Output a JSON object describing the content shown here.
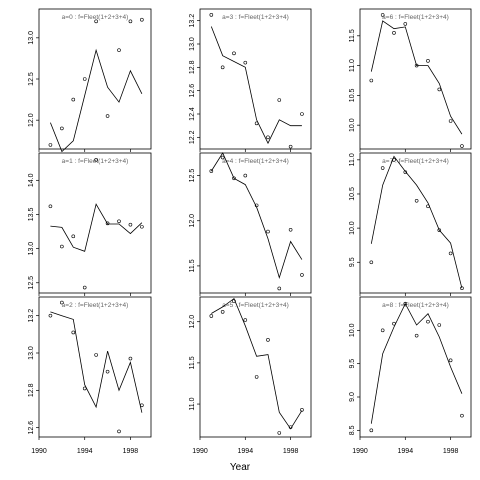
{
  "chart_data": {
    "type": "line",
    "xlabel": "Year",
    "legend": "none",
    "grid": false,
    "x_ticks": [
      1990,
      1994,
      1998
    ],
    "panels": [
      {
        "label": "a=0  :  f=Fleet(1+2+3+4)",
        "xlim": [
          1990,
          1999.8
        ],
        "ylim": [
          11.65,
          13.35
        ],
        "yticks": [
          12.0,
          12.5,
          13.0
        ],
        "observed": {
          "x": [
            1991,
            1992,
            1993,
            1994,
            1995,
            1996,
            1997,
            1998,
            1999
          ],
          "y": [
            11.7,
            11.9,
            12.25,
            12.5,
            13.2,
            12.05,
            12.85,
            13.2,
            13.22
          ]
        },
        "fitted": {
          "x": [
            1991,
            1992,
            1993,
            1994,
            1995,
            1996,
            1997,
            1998,
            1999
          ],
          "y": [
            11.97,
            11.62,
            11.75,
            12.3,
            12.85,
            12.4,
            12.22,
            12.6,
            12.32
          ]
        }
      },
      {
        "label": "a=1  :  f=Fleet(1+2+3+4)",
        "xlim": [
          1990,
          1999.8
        ],
        "ylim": [
          12.35,
          14.4
        ],
        "yticks": [
          12.5,
          13.0,
          13.5,
          14.0
        ],
        "observed": {
          "x": [
            1991,
            1992,
            1993,
            1994,
            1995,
            1996,
            1997,
            1998,
            1999
          ],
          "y": [
            13.62,
            13.03,
            13.18,
            12.43,
            14.3,
            13.37,
            13.4,
            13.35,
            13.32
          ]
        },
        "fitted": {
          "x": [
            1991,
            1992,
            1993,
            1994,
            1995,
            1996,
            1997,
            1998,
            1999
          ],
          "y": [
            13.33,
            13.31,
            13.02,
            12.96,
            13.65,
            13.36,
            13.36,
            13.22,
            13.38
          ]
        }
      },
      {
        "label": "a=2  :  f=Fleet(1+2+3+4)",
        "xlim": [
          1990,
          1999.8
        ],
        "ylim": [
          12.55,
          13.3
        ],
        "yticks": [
          12.6,
          12.8,
          13.0,
          13.2
        ],
        "observed": {
          "x": [
            1991,
            1992,
            1993,
            1994,
            1995,
            1996,
            1997,
            1998,
            1999
          ],
          "y": [
            13.2,
            13.27,
            13.11,
            12.81,
            12.99,
            12.9,
            12.58,
            12.97,
            12.72
          ]
        },
        "fitted": {
          "x": [
            1991,
            1992,
            1993,
            1994,
            1995,
            1996,
            1997,
            1998,
            1999
          ],
          "y": [
            13.22,
            13.2,
            13.18,
            12.83,
            12.71,
            13.01,
            12.8,
            12.95,
            12.68
          ]
        }
      },
      {
        "label": "a=3  :  f=Fleet(1+2+3+4)",
        "xlim": [
          1990,
          1999.8
        ],
        "ylim": [
          12.1,
          13.3
        ],
        "yticks": [
          12.2,
          12.4,
          12.6,
          12.8,
          13.0,
          13.2
        ],
        "observed": {
          "x": [
            1991,
            1992,
            1993,
            1994,
            1995,
            1996,
            1997,
            1998,
            1999
          ],
          "y": [
            13.25,
            12.8,
            12.92,
            12.84,
            12.32,
            12.2,
            12.52,
            12.12,
            12.4
          ]
        },
        "fitted": {
          "x": [
            1991,
            1992,
            1993,
            1994,
            1995,
            1996,
            1997,
            1998,
            1999
          ],
          "y": [
            13.15,
            12.9,
            12.85,
            12.8,
            12.35,
            12.15,
            12.35,
            12.3,
            12.3
          ]
        }
      },
      {
        "label": "a=4  :  f=Fleet(1+2+3+4)",
        "xlim": [
          1990,
          1999.8
        ],
        "ylim": [
          11.2,
          12.75
        ],
        "yticks": [
          11.5,
          12.0,
          12.5
        ],
        "observed": {
          "x": [
            1991,
            1992,
            1993,
            1994,
            1995,
            1996,
            1997,
            1998,
            1999
          ],
          "y": [
            12.55,
            12.7,
            12.47,
            12.5,
            12.17,
            11.88,
            11.25,
            11.9,
            11.4
          ]
        },
        "fitted": {
          "x": [
            1991,
            1992,
            1993,
            1994,
            1995,
            1996,
            1997,
            1998,
            1999
          ],
          "y": [
            12.55,
            12.75,
            12.47,
            12.4,
            12.15,
            11.8,
            11.37,
            11.77,
            11.57
          ]
        }
      },
      {
        "label": "a=5  :  f=Fleet(1+2+3+4)",
        "xlim": [
          1990,
          1999.8
        ],
        "ylim": [
          10.6,
          12.3
        ],
        "yticks": [
          11.0,
          11.5,
          12.0
        ],
        "observed": {
          "x": [
            1991,
            1992,
            1993,
            1994,
            1995,
            1996,
            1997,
            1998,
            1999
          ],
          "y": [
            12.07,
            12.12,
            12.25,
            12.02,
            11.33,
            11.78,
            10.65,
            10.72,
            10.93
          ]
        },
        "fitted": {
          "x": [
            1991,
            1992,
            1993,
            1994,
            1995,
            1996,
            1997,
            1998,
            1999
          ],
          "y": [
            12.1,
            12.18,
            12.28,
            11.95,
            11.58,
            11.6,
            10.9,
            10.7,
            10.92
          ]
        }
      },
      {
        "label": "a=6  :  f=Fleet(1+2+3+4)",
        "xlim": [
          1990,
          1999.8
        ],
        "ylim": [
          9.6,
          11.95
        ],
        "yticks": [
          10.0,
          10.5,
          11.0,
          11.5
        ],
        "observed": {
          "x": [
            1991,
            1992,
            1993,
            1994,
            1995,
            1996,
            1997,
            1998,
            1999
          ],
          "y": [
            10.75,
            11.85,
            11.55,
            11.7,
            11.0,
            11.08,
            10.6,
            10.07,
            9.65
          ]
        },
        "fitted": {
          "x": [
            1991,
            1992,
            1993,
            1994,
            1995,
            1996,
            1997,
            1998,
            1999
          ],
          "y": [
            10.9,
            11.75,
            11.62,
            11.65,
            11.0,
            11.0,
            10.7,
            10.15,
            9.85
          ]
        }
      },
      {
        "label": "a=7  :  f=Fleet(1+2+3+4)",
        "xlim": [
          1990,
          1999.8
        ],
        "ylim": [
          9.05,
          11.1
        ],
        "yticks": [
          9.5,
          10.0,
          10.5,
          11.0
        ],
        "observed": {
          "x": [
            1991,
            1992,
            1993,
            1994,
            1995,
            1996,
            1997,
            1998,
            1999
          ],
          "y": [
            9.5,
            10.88,
            11.0,
            10.82,
            10.4,
            10.32,
            9.97,
            9.63,
            9.12
          ]
        },
        "fitted": {
          "x": [
            1991,
            1992,
            1993,
            1994,
            1995,
            1996,
            1997,
            1998,
            1999
          ],
          "y": [
            9.77,
            10.63,
            11.05,
            10.83,
            10.63,
            10.37,
            9.97,
            9.78,
            9.12
          ]
        }
      },
      {
        "label": "a=8  :  f=Fleet(1+2+3+4)",
        "xlim": [
          1990,
          1999.8
        ],
        "ylim": [
          8.4,
          10.5
        ],
        "yticks": [
          8.5,
          9.0,
          9.5,
          10.0
        ],
        "observed": {
          "x": [
            1991,
            1992,
            1993,
            1994,
            1995,
            1996,
            1997,
            1998,
            1999
          ],
          "y": [
            8.5,
            10.0,
            10.1,
            10.4,
            9.92,
            10.13,
            10.08,
            9.55,
            8.72
          ]
        },
        "fitted": {
          "x": [
            1991,
            1992,
            1993,
            1994,
            1995,
            1996,
            1997,
            1998,
            1999
          ],
          "y": [
            8.6,
            9.65,
            10.05,
            10.4,
            10.08,
            10.25,
            9.9,
            9.45,
            9.05
          ]
        }
      }
    ]
  }
}
